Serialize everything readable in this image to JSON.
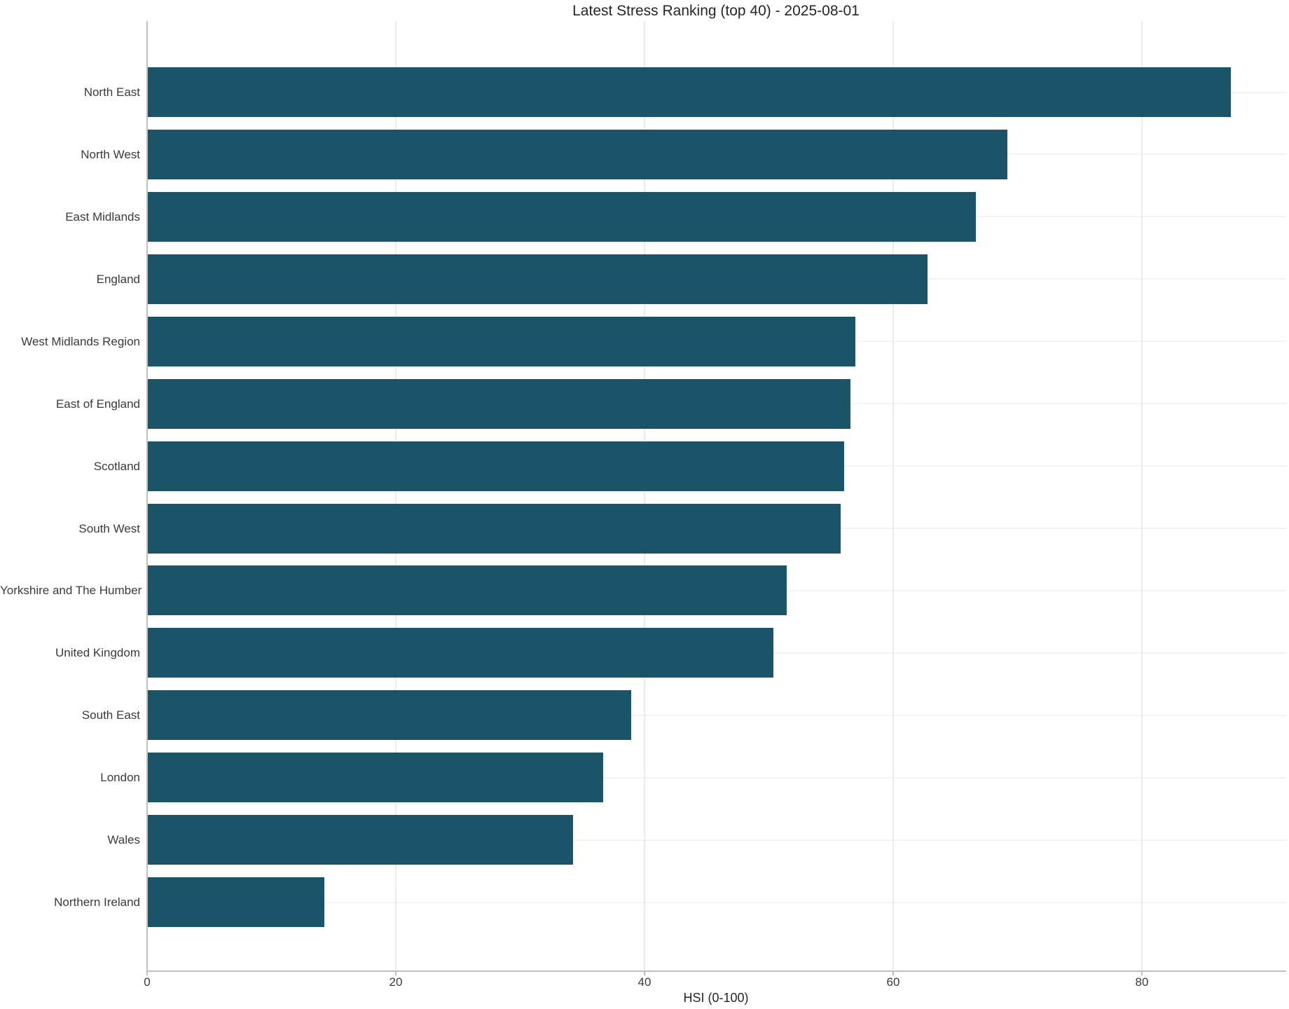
{
  "title": "Latest Stress Ranking (top 40) - 2025-08-01",
  "chart_data": {
    "type": "bar",
    "orientation": "horizontal",
    "title": "Latest Stress Ranking (top 40) - 2025-08-01",
    "xlabel": "HSI (0-100)",
    "ylabel": "",
    "categories": [
      "North East",
      "North West",
      "East Midlands",
      "England",
      "West Midlands Region",
      "East of England",
      "Scotland",
      "South West",
      "Yorkshire and The Humber",
      "United Kingdom",
      "South East",
      "London",
      "Wales",
      "Northern Ireland"
    ],
    "values": [
      87.1,
      69.1,
      66.6,
      62.7,
      56.9,
      56.5,
      56.0,
      55.7,
      51.4,
      50.3,
      38.9,
      36.6,
      34.2,
      14.2
    ],
    "x_ticks": [
      "0",
      "20",
      "40",
      "60",
      "80"
    ],
    "x_tick_values": [
      0,
      20,
      40,
      60,
      80
    ],
    "xlim": [
      0,
      91.5
    ],
    "grid": true,
    "legend": "none",
    "bar_color": "#1b5468"
  },
  "colors": {
    "bar": "#1b5468",
    "spine": "#bfbfbf",
    "grid_vertical": "#ebebeb",
    "grid_horizontal": "#f3f3f3",
    "tick_text": "#3a3a3a",
    "title_text": "#262626",
    "background": "#ffffff"
  }
}
